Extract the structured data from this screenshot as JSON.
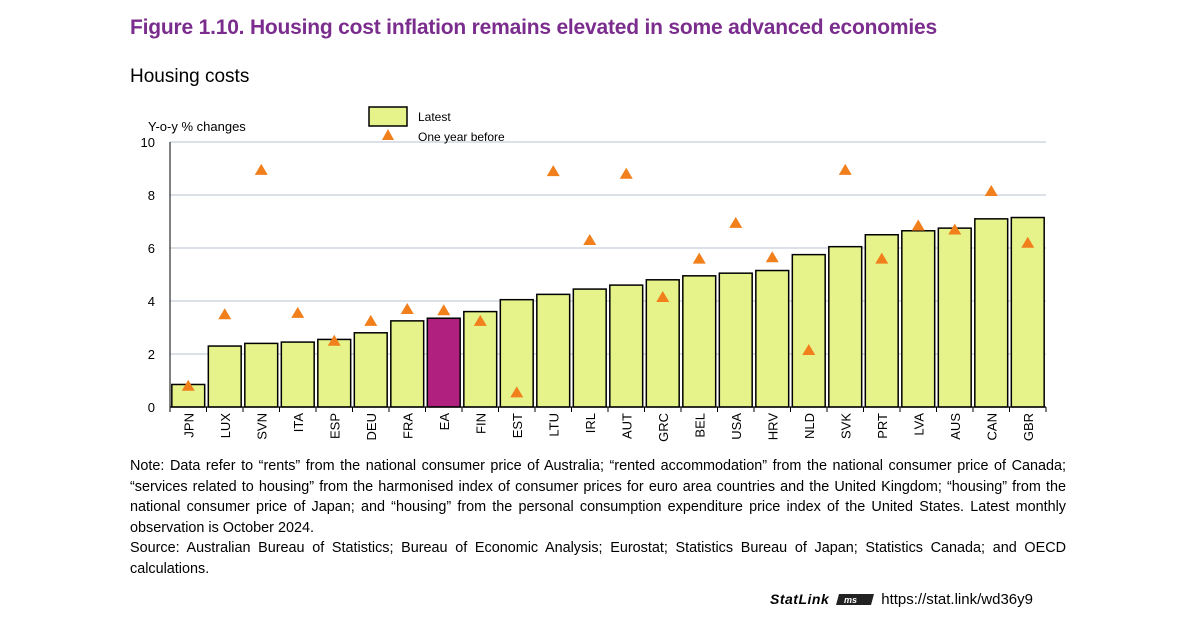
{
  "figure_title": "Figure 1.10. Housing cost inflation remains elevated in some advanced economies",
  "chart_data": {
    "type": "bar",
    "title": "Housing costs",
    "ylabel": "Y-o-y % changes",
    "xlabel": "",
    "ylim": [
      0,
      10
    ],
    "yticks": [
      0,
      2,
      4,
      6,
      8,
      10
    ],
    "grid": true,
    "legend_position": "top-center",
    "categories": [
      "JPN",
      "LUX",
      "SVN",
      "ITA",
      "ESP",
      "DEU",
      "FRA",
      "EA",
      "FIN",
      "EST",
      "LTU",
      "IRL",
      "AUT",
      "GRC",
      "BEL",
      "USA",
      "HRV",
      "NLD",
      "SVK",
      "PRT",
      "LVA",
      "AUS",
      "CAN",
      "GBR"
    ],
    "series": [
      {
        "name": "Latest",
        "kind": "bar",
        "color": "#e5f38a",
        "highlight": {
          "EA": "#b0207f"
        },
        "values": [
          0.85,
          2.3,
          2.4,
          2.45,
          2.55,
          2.8,
          3.25,
          3.35,
          3.6,
          4.05,
          4.25,
          4.45,
          4.6,
          4.8,
          4.95,
          5.05,
          5.15,
          5.75,
          6.05,
          6.5,
          6.65,
          6.75,
          7.1,
          7.15
        ]
      },
      {
        "name": "One year before",
        "kind": "marker",
        "marker": "triangle",
        "color": "#f07f1c",
        "values": [
          0.8,
          3.5,
          8.95,
          3.55,
          2.5,
          3.25,
          3.7,
          3.65,
          3.25,
          0.55,
          8.9,
          6.3,
          8.8,
          4.15,
          5.6,
          6.95,
          5.65,
          2.15,
          8.95,
          5.6,
          6.85,
          6.7,
          8.15,
          6.2
        ]
      }
    ]
  },
  "note": "Note: Data refer to “rents” from the national consumer price of Australia; “rented accommodation” from the national consumer price of Canada; “services related to housing” from the harmonised index of consumer prices for euro area countries and the United Kingdom; “housing” from the national consumer price of Japan; and “housing” from the personal consumption expenditure price index of the United States. Latest monthly observation is October 2024.",
  "source": "Source: Australian Bureau of Statistics; Bureau of Economic Analysis; Eurostat; Statistics Bureau of Japan; Statistics Canada; and OECD calculations.",
  "statlink": {
    "brand": "StatLink",
    "logo_text": "ms",
    "url": "https://stat.link/wd36y9"
  }
}
